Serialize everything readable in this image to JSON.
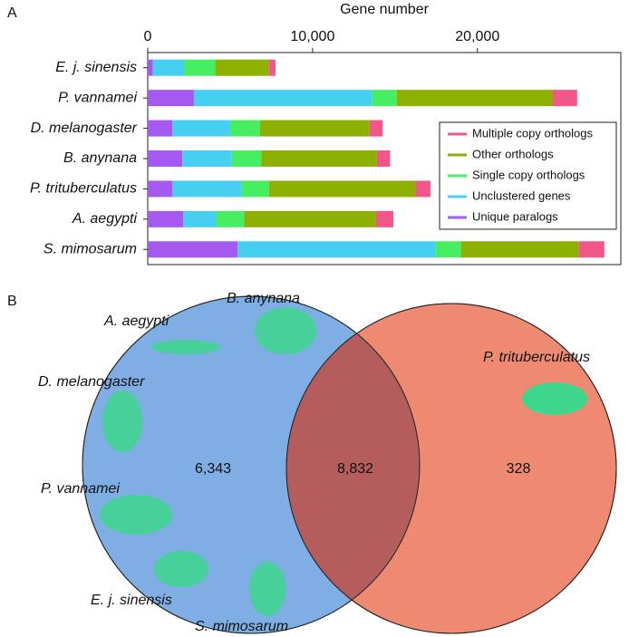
{
  "chart_data": [
    {
      "type": "stacked-barh",
      "panel": "A",
      "xlabel": "Gene number",
      "categories": [
        "E. j. sinensis",
        "P. vannamei",
        "D. melanogaster",
        "B. anynana",
        "P. trituberculatus",
        "A. aegypti",
        "S. mimosarum"
      ],
      "series": [
        {
          "name": "Unique paralogs",
          "color": "#a659f0",
          "values": [
            300,
            2800,
            1500,
            2100,
            1500,
            2150,
            5450
          ]
        },
        {
          "name": "Unclustered genes",
          "color": "#47cff2",
          "values": [
            1900,
            10800,
            3500,
            3000,
            4200,
            2000,
            12000
          ]
        },
        {
          "name": "Single copy orthologs",
          "color": "#48ee62",
          "values": [
            1900,
            1500,
            1800,
            1800,
            1650,
            1700,
            1550
          ]
        },
        {
          "name": "Other orthologs",
          "color": "#8eb000",
          "values": [
            3250,
            9450,
            6650,
            7000,
            8900,
            8000,
            7150
          ]
        },
        {
          "name": "Multiple copy orthologs",
          "color": "#f3578a",
          "values": [
            400,
            1500,
            800,
            800,
            900,
            1050,
            1550
          ]
        }
      ],
      "xlim": [
        0,
        28700
      ],
      "xticks": [
        0,
        {
          "value": 10000,
          "label": "10,000"
        },
        {
          "value": 20000,
          "label": "20,000"
        }
      ]
    },
    {
      "type": "venn",
      "panel": "B",
      "sets": [
        {
          "members": [
            "A. aegypti",
            "B. anynana",
            "D. melanogaster",
            "P. vannamei",
            "E. j. sinensis",
            "S. mimosarum"
          ],
          "color": "#7eaee4"
        },
        {
          "members": [
            "P. trituberculatus"
          ],
          "color": "#ef8a72"
        }
      ],
      "overlap_color": "#b55d5c",
      "values": [
        6343,
        8832,
        328
      ],
      "value_labels": [
        "6,343",
        "8,832",
        "328"
      ]
    }
  ]
}
